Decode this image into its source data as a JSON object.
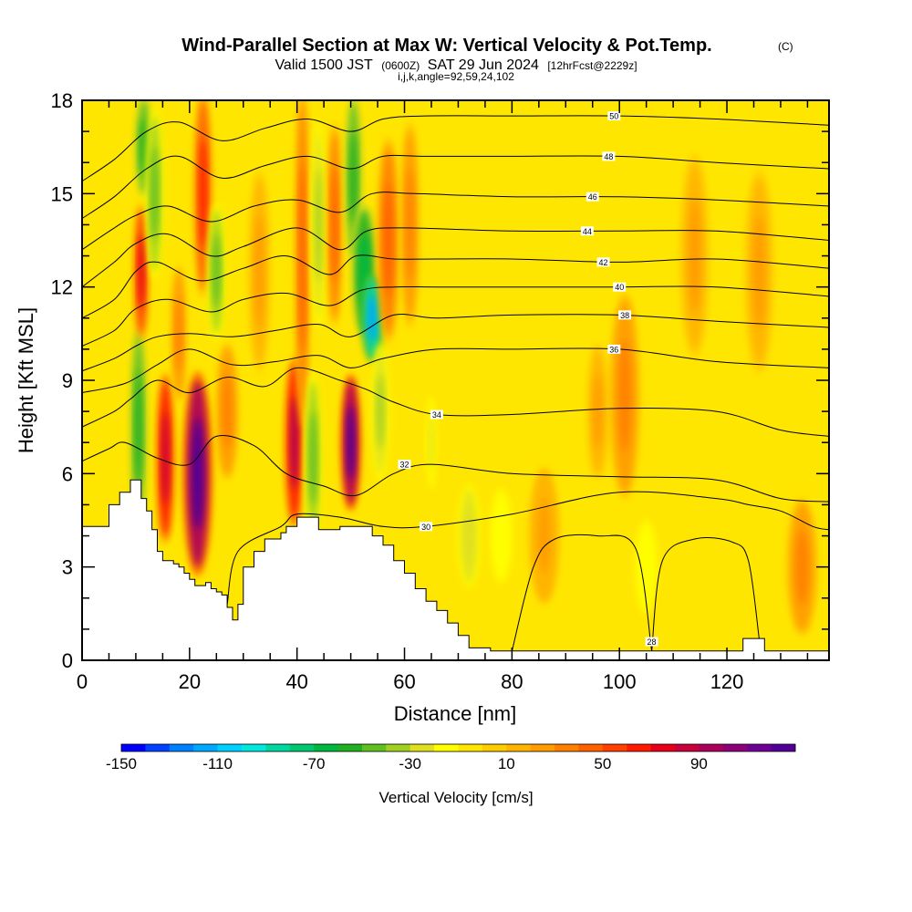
{
  "chart_data": {
    "type": "heatmap",
    "title": "Wind-Parallel Section at Max W: Vertical Velocity & Pot.Temp.",
    "title_mark": "(C)",
    "subtitle_prefix": "Valid 1500 JST",
    "subtitle_utc": "(0600Z)",
    "subtitle_date": "SAT 29 Jun 2024",
    "subtitle_fcst": "[12hrFcst@2229z]",
    "subtitle_line2": "i,j,k,angle=92,59,24,102",
    "xlabel": "Distance [nm]",
    "ylabel": "Height [Kft MSL]",
    "xlim": [
      0,
      139
    ],
    "ylim": [
      0,
      18
    ],
    "x_ticks": [
      0,
      20,
      40,
      60,
      80,
      100,
      120
    ],
    "x_tick_labels": [
      "0",
      "20",
      "40",
      "60",
      "80",
      "100",
      "120"
    ],
    "y_ticks": [
      0,
      3,
      6,
      9,
      12,
      15,
      18
    ],
    "y_tick_labels": [
      "0",
      "3",
      "6",
      "9",
      "12",
      "15",
      "18"
    ],
    "grid": false,
    "background_color": "#ffe600",
    "terrain_profile": {
      "x": [
        0,
        1,
        3,
        5,
        7,
        9,
        10,
        11,
        12,
        13,
        14,
        15,
        17,
        18,
        19,
        20,
        21,
        22,
        23,
        24,
        25,
        26,
        27,
        28,
        29,
        30,
        32,
        34,
        36,
        37,
        38,
        39,
        40,
        42,
        44,
        46,
        48,
        50,
        52,
        54,
        56,
        58,
        60,
        62,
        64,
        66,
        68,
        70,
        72,
        76,
        80,
        90,
        100,
        110,
        120,
        123,
        124,
        126,
        127,
        130,
        132,
        135,
        139
      ],
      "y": [
        4.3,
        4.3,
        4.3,
        5.0,
        5.4,
        5.8,
        5.8,
        5.2,
        4.8,
        4.2,
        3.5,
        3.2,
        3.1,
        3.0,
        2.8,
        2.6,
        2.4,
        2.4,
        2.5,
        2.3,
        2.2,
        2.1,
        1.7,
        1.3,
        1.8,
        3.0,
        3.5,
        3.9,
        3.9,
        4.1,
        4.3,
        4.3,
        4.6,
        4.6,
        4.2,
        4.2,
        4.3,
        4.3,
        4.3,
        4.0,
        3.7,
        3.2,
        2.8,
        2.3,
        1.9,
        1.6,
        1.2,
        0.8,
        0.4,
        0.3,
        0.3,
        0.3,
        0.3,
        0.3,
        0.3,
        0.7,
        0.7,
        0.7,
        0.3,
        0.3,
        0.3,
        0.3,
        0.3
      ]
    },
    "w_features": [
      {
        "x": 10.5,
        "y": 7.5,
        "rx": 1.2,
        "ry": 3.0,
        "w": -60
      },
      {
        "x": 11.0,
        "y": 12.5,
        "rx": 1.0,
        "ry": 2.0,
        "w": 70
      },
      {
        "x": 11.5,
        "y": 16.5,
        "rx": 1.3,
        "ry": 1.5,
        "w": -55
      },
      {
        "x": 13.5,
        "y": 15.0,
        "rx": 1.2,
        "ry": 2.5,
        "w": -50
      },
      {
        "x": 15.5,
        "y": 6.5,
        "rx": 1.2,
        "ry": 2.5,
        "w": 80
      },
      {
        "x": 18.0,
        "y": 10.5,
        "rx": 1.0,
        "ry": 2.0,
        "w": 30
      },
      {
        "x": 21.5,
        "y": 6.0,
        "rx": 2.0,
        "ry": 3.0,
        "w": 120
      },
      {
        "x": 22.5,
        "y": 15.0,
        "rx": 1.2,
        "ry": 3.0,
        "w": 60
      },
      {
        "x": 25.0,
        "y": 12.5,
        "rx": 1.2,
        "ry": 2.0,
        "w": -45
      },
      {
        "x": 27.0,
        "y": 8.0,
        "rx": 1.5,
        "ry": 2.0,
        "w": 30
      },
      {
        "x": 33.0,
        "y": 12.5,
        "rx": 1.5,
        "ry": 3.0,
        "w": 20
      },
      {
        "x": 39.5,
        "y": 7.0,
        "rx": 1.3,
        "ry": 2.5,
        "w": 90
      },
      {
        "x": 41.0,
        "y": 13.0,
        "rx": 1.0,
        "ry": 5.0,
        "w": 45
      },
      {
        "x": 43.0,
        "y": 6.5,
        "rx": 1.2,
        "ry": 2.5,
        "w": -50
      },
      {
        "x": 44.0,
        "y": 14.0,
        "rx": 1.0,
        "ry": 3.0,
        "w": -40
      },
      {
        "x": 47.0,
        "y": 14.0,
        "rx": 1.0,
        "ry": 3.0,
        "w": 45
      },
      {
        "x": 50.0,
        "y": 7.0,
        "rx": 1.3,
        "ry": 2.0,
        "w": 125
      },
      {
        "x": 50.5,
        "y": 15.5,
        "rx": 1.2,
        "ry": 2.5,
        "w": -55
      },
      {
        "x": 52.5,
        "y": 12.5,
        "rx": 1.8,
        "ry": 2.0,
        "w": -70
      },
      {
        "x": 54.0,
        "y": 11.0,
        "rx": 1.5,
        "ry": 1.3,
        "w": -120
      },
      {
        "x": 55.5,
        "y": 8.0,
        "rx": 1.2,
        "ry": 2.0,
        "w": -40
      },
      {
        "x": 57.0,
        "y": 13.5,
        "rx": 1.5,
        "ry": 3.0,
        "w": 40
      },
      {
        "x": 61.0,
        "y": 14.0,
        "rx": 1.2,
        "ry": 3.0,
        "w": 30
      },
      {
        "x": 65.0,
        "y": 7.0,
        "rx": 0.8,
        "ry": 1.5,
        "w": -25
      },
      {
        "x": 72.0,
        "y": 4.0,
        "rx": 1.5,
        "ry": 1.5,
        "w": -30
      },
      {
        "x": 78.0,
        "y": 4.0,
        "rx": 2.0,
        "ry": 1.5,
        "w": -15
      },
      {
        "x": 86.0,
        "y": 4.0,
        "rx": 2.0,
        "ry": 2.0,
        "w": 25
      },
      {
        "x": 96.0,
        "y": 8.0,
        "rx": 1.5,
        "ry": 2.0,
        "w": 20
      },
      {
        "x": 101.0,
        "y": 8.5,
        "rx": 2.0,
        "ry": 3.0,
        "w": 30
      },
      {
        "x": 105.0,
        "y": 3.0,
        "rx": 2.0,
        "ry": 1.5,
        "w": -15
      },
      {
        "x": 114.0,
        "y": 13.0,
        "rx": 2.0,
        "ry": 3.0,
        "w": 20
      },
      {
        "x": 126.0,
        "y": 12.5,
        "rx": 2.0,
        "ry": 3.0,
        "w": 20
      },
      {
        "x": 134.0,
        "y": 3.0,
        "rx": 2.0,
        "ry": 2.0,
        "w": 30
      }
    ],
    "theta_contours": [
      {
        "label": "28",
        "label_x": 106,
        "label_y": 0.6,
        "points": [
          [
            80,
            0.3
          ],
          [
            84,
            3.0
          ],
          [
            88,
            3.9
          ],
          [
            96,
            4.0
          ],
          [
            103,
            3.6
          ],
          [
            106,
            0.3
          ]
        ]
      },
      {
        "label": "",
        "label_x": null,
        "label_y": null,
        "points": [
          [
            106,
            0.3
          ],
          [
            108,
            3.2
          ],
          [
            114,
            3.9
          ],
          [
            121,
            3.8
          ],
          [
            124,
            3.2
          ],
          [
            126,
            0.7
          ]
        ]
      },
      {
        "label": "30",
        "label_x": 64,
        "label_y": 4.3,
        "points": [
          [
            27,
            1.8
          ],
          [
            29,
            3.5
          ],
          [
            37,
            4.3
          ],
          [
            40,
            4.7
          ],
          [
            48,
            4.6
          ],
          [
            56,
            4.3
          ],
          [
            64,
            4.3
          ],
          [
            80,
            4.7
          ],
          [
            100,
            5.4
          ],
          [
            118,
            5.2
          ],
          [
            124,
            5.0
          ],
          [
            130,
            4.8
          ],
          [
            136,
            4.3
          ],
          [
            139,
            4.2
          ]
        ]
      },
      {
        "label": "32",
        "label_x": 60,
        "label_y": 6.3,
        "points": [
          [
            0,
            6.4
          ],
          [
            5,
            6.8
          ],
          [
            8,
            7.0
          ],
          [
            14,
            6.5
          ],
          [
            20,
            6.3
          ],
          [
            25,
            7.2
          ],
          [
            32,
            6.9
          ],
          [
            38,
            6.0
          ],
          [
            45,
            5.6
          ],
          [
            51,
            5.3
          ],
          [
            58,
            6.0
          ],
          [
            65,
            6.3
          ],
          [
            80,
            6.0
          ],
          [
            100,
            5.9
          ],
          [
            118,
            5.8
          ],
          [
            130,
            5.2
          ],
          [
            139,
            5.1
          ]
        ]
      },
      {
        "label": "34",
        "label_x": 66,
        "label_y": 7.9,
        "points": [
          [
            0,
            7.5
          ],
          [
            6,
            8.0
          ],
          [
            9,
            8.4
          ],
          [
            14,
            9.0
          ],
          [
            20,
            8.6
          ],
          [
            27,
            9.1
          ],
          [
            34,
            8.8
          ],
          [
            40,
            9.4
          ],
          [
            48,
            9.0
          ],
          [
            53,
            8.7
          ],
          [
            58,
            8.3
          ],
          [
            66,
            7.9
          ],
          [
            80,
            7.9
          ],
          [
            100,
            8.1
          ],
          [
            118,
            8.0
          ],
          [
            130,
            7.4
          ],
          [
            139,
            7.2
          ]
        ]
      },
      {
        "label": "36",
        "label_x": 99,
        "label_y": 10.0,
        "points": [
          [
            0,
            8.6
          ],
          [
            8,
            8.9
          ],
          [
            14,
            9.5
          ],
          [
            20,
            10.0
          ],
          [
            28,
            9.5
          ],
          [
            36,
            9.6
          ],
          [
            44,
            9.8
          ],
          [
            50,
            9.4
          ],
          [
            56,
            9.7
          ],
          [
            66,
            10.0
          ],
          [
            80,
            10.0
          ],
          [
            100,
            10.0
          ],
          [
            118,
            9.6
          ],
          [
            139,
            9.4
          ]
        ]
      },
      {
        "label": "38",
        "label_x": 101,
        "label_y": 11.1,
        "points": [
          [
            0,
            9.3
          ],
          [
            6,
            9.7
          ],
          [
            10,
            10.1
          ],
          [
            14,
            10.4
          ],
          [
            20,
            10.5
          ],
          [
            28,
            10.4
          ],
          [
            36,
            10.6
          ],
          [
            44,
            10.8
          ],
          [
            50,
            10.4
          ],
          [
            58,
            11.1
          ],
          [
            66,
            11.0
          ],
          [
            80,
            11.1
          ],
          [
            100,
            11.1
          ],
          [
            118,
            10.9
          ],
          [
            139,
            10.7
          ]
        ]
      },
      {
        "label": "40",
        "label_x": 100,
        "label_y": 12.0,
        "points": [
          [
            0,
            10.1
          ],
          [
            6,
            10.6
          ],
          [
            10,
            11.3
          ],
          [
            16,
            11.6
          ],
          [
            24,
            11.2
          ],
          [
            30,
            11.6
          ],
          [
            38,
            11.8
          ],
          [
            46,
            11.4
          ],
          [
            52,
            11.9
          ],
          [
            58,
            12.0
          ],
          [
            66,
            12.0
          ],
          [
            80,
            12.0
          ],
          [
            100,
            12.0
          ],
          [
            118,
            12.0
          ],
          [
            139,
            11.7
          ]
        ]
      },
      {
        "label": "42",
        "label_x": 97,
        "label_y": 12.8,
        "points": [
          [
            0,
            11.0
          ],
          [
            6,
            11.6
          ],
          [
            10,
            12.5
          ],
          [
            14,
            12.8
          ],
          [
            22,
            12.2
          ],
          [
            30,
            12.6
          ],
          [
            38,
            13.0
          ],
          [
            46,
            12.4
          ],
          [
            51,
            13.0
          ],
          [
            58,
            12.9
          ],
          [
            66,
            12.9
          ],
          [
            80,
            12.9
          ],
          [
            100,
            12.8
          ],
          [
            118,
            12.9
          ],
          [
            139,
            12.6
          ]
        ]
      },
      {
        "label": "44",
        "label_x": 94,
        "label_y": 13.8,
        "points": [
          [
            0,
            12.0
          ],
          [
            6,
            12.8
          ],
          [
            10,
            13.4
          ],
          [
            16,
            13.7
          ],
          [
            24,
            13.0
          ],
          [
            30,
            13.3
          ],
          [
            40,
            13.9
          ],
          [
            48,
            13.2
          ],
          [
            53,
            13.8
          ],
          [
            60,
            13.9
          ],
          [
            80,
            13.8
          ],
          [
            100,
            13.8
          ],
          [
            118,
            13.8
          ],
          [
            139,
            13.5
          ]
        ]
      },
      {
        "label": "46",
        "label_x": 95,
        "label_y": 14.9,
        "points": [
          [
            0,
            13.2
          ],
          [
            6,
            13.9
          ],
          [
            10,
            14.3
          ],
          [
            16,
            14.6
          ],
          [
            24,
            14.1
          ],
          [
            32,
            14.6
          ],
          [
            40,
            14.8
          ],
          [
            48,
            14.4
          ],
          [
            54,
            15.0
          ],
          [
            62,
            15.0
          ],
          [
            80,
            14.9
          ],
          [
            100,
            14.9
          ],
          [
            118,
            14.8
          ],
          [
            139,
            14.6
          ]
        ]
      },
      {
        "label": "48",
        "label_x": 98,
        "label_y": 16.2,
        "points": [
          [
            0,
            14.2
          ],
          [
            6,
            14.9
          ],
          [
            12,
            15.8
          ],
          [
            18,
            16.2
          ],
          [
            26,
            15.5
          ],
          [
            34,
            15.9
          ],
          [
            42,
            16.2
          ],
          [
            50,
            15.8
          ],
          [
            56,
            16.2
          ],
          [
            64,
            16.2
          ],
          [
            80,
            16.2
          ],
          [
            100,
            16.2
          ],
          [
            118,
            16.0
          ],
          [
            139,
            15.8
          ]
        ]
      },
      {
        "label": "50",
        "label_x": 99,
        "label_y": 17.5,
        "points": [
          [
            0,
            15.4
          ],
          [
            6,
            16.1
          ],
          [
            12,
            17.0
          ],
          [
            18,
            17.3
          ],
          [
            26,
            16.7
          ],
          [
            34,
            17.1
          ],
          [
            42,
            17.4
          ],
          [
            50,
            17.0
          ],
          [
            56,
            17.4
          ],
          [
            64,
            17.5
          ],
          [
            80,
            17.5
          ],
          [
            100,
            17.5
          ],
          [
            118,
            17.4
          ],
          [
            139,
            17.2
          ]
        ]
      }
    ],
    "colorbar": {
      "label": "Vertical Velocity [cm/s]",
      "min": -150,
      "max": 130,
      "step": 10,
      "tick_values": [
        -150,
        -110,
        -70,
        -30,
        10,
        50,
        90
      ],
      "tick_labels": [
        "-150",
        "-110",
        "-70",
        "-30",
        "10",
        "50",
        "90"
      ],
      "colors": [
        "#0000ff",
        "#0040ff",
        "#0080ff",
        "#00a8ff",
        "#00d0ff",
        "#00e8e0",
        "#00d8a0",
        "#00c870",
        "#00b840",
        "#20b020",
        "#60c020",
        "#a0d020",
        "#e0e020",
        "#ffff00",
        "#ffe600",
        "#ffcc00",
        "#ffb400",
        "#ff9c00",
        "#ff8000",
        "#ff6000",
        "#ff4000",
        "#ff1a00",
        "#e6001a",
        "#c8003c",
        "#aa005a",
        "#8c0078",
        "#6e0096",
        "#500096"
      ]
    }
  }
}
